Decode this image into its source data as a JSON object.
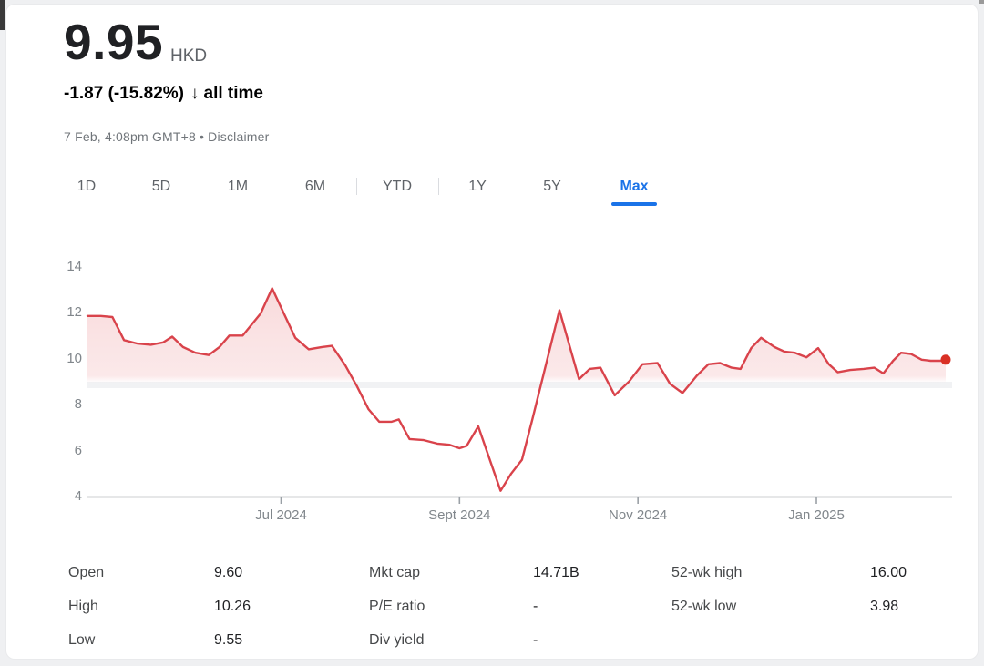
{
  "header": {
    "price": "9.95",
    "currency": "HKD",
    "change": "-1.87 (-15.82%)",
    "arrow_glyph": "↓",
    "change_period": "all time",
    "change_color": "#d93025",
    "timestamp": "7 Feb, 4:08pm GMT+8",
    "dot_separator": "•",
    "disclaimer_label": "Disclaimer"
  },
  "range_tabs": {
    "items": [
      "1D",
      "5D",
      "1M",
      "6M",
      "YTD",
      "1Y",
      "5Y",
      "Max"
    ],
    "active": "Max",
    "active_color": "#1a73e8"
  },
  "chart_data": {
    "type": "area",
    "series_name": "Share price (HKD), Max range",
    "line_color": "#d9434b",
    "endpoint_color": "#d93025",
    "fill_base_color": "#e05258",
    "axis_color": "#9aa0a6",
    "ylim": [
      4,
      14
    ],
    "y_ticks": [
      14,
      12,
      10,
      8,
      6,
      4
    ],
    "x_unit_note": "months since 1 Jan 2024 (decimal)",
    "x_domain_months": [
      3.82,
      13.45
    ],
    "x_ticks": [
      {
        "label": "Jul 2024",
        "month": 6
      },
      {
        "label": "Sept 2024",
        "month": 8
      },
      {
        "label": "Nov 2024",
        "month": 10
      },
      {
        "label": "Jan 2025",
        "month": 12
      }
    ],
    "points": [
      [
        3.83,
        11.85
      ],
      [
        3.98,
        11.85
      ],
      [
        4.11,
        11.8
      ],
      [
        4.24,
        10.8
      ],
      [
        4.39,
        10.65
      ],
      [
        4.54,
        10.6
      ],
      [
        4.68,
        10.7
      ],
      [
        4.78,
        10.95
      ],
      [
        4.9,
        10.5
      ],
      [
        5.04,
        10.25
      ],
      [
        5.19,
        10.15
      ],
      [
        5.31,
        10.5
      ],
      [
        5.42,
        11.0
      ],
      [
        5.57,
        11.0
      ],
      [
        5.77,
        11.95
      ],
      [
        5.9,
        13.05
      ],
      [
        6.05,
        11.8
      ],
      [
        6.16,
        10.9
      ],
      [
        6.31,
        10.4
      ],
      [
        6.46,
        10.5
      ],
      [
        6.57,
        10.55
      ],
      [
        6.72,
        9.7
      ],
      [
        6.85,
        8.8
      ],
      [
        6.98,
        7.8
      ],
      [
        7.1,
        7.25
      ],
      [
        7.24,
        7.25
      ],
      [
        7.32,
        7.35
      ],
      [
        7.44,
        6.5
      ],
      [
        7.6,
        6.45
      ],
      [
        7.75,
        6.3
      ],
      [
        7.89,
        6.25
      ],
      [
        8.0,
        6.1
      ],
      [
        8.08,
        6.2
      ],
      [
        8.21,
        7.05
      ],
      [
        8.46,
        4.25
      ],
      [
        8.58,
        5.0
      ],
      [
        8.7,
        5.6
      ],
      [
        8.82,
        7.4
      ],
      [
        9.12,
        12.1
      ],
      [
        9.34,
        9.1
      ],
      [
        9.46,
        9.55
      ],
      [
        9.58,
        9.6
      ],
      [
        9.74,
        8.4
      ],
      [
        9.9,
        9.0
      ],
      [
        10.05,
        9.75
      ],
      [
        10.22,
        9.8
      ],
      [
        10.36,
        8.9
      ],
      [
        10.5,
        8.5
      ],
      [
        10.66,
        9.25
      ],
      [
        10.79,
        9.75
      ],
      [
        10.92,
        9.8
      ],
      [
        11.05,
        9.6
      ],
      [
        11.15,
        9.55
      ],
      [
        11.27,
        10.45
      ],
      [
        11.38,
        10.9
      ],
      [
        11.53,
        10.5
      ],
      [
        11.64,
        10.3
      ],
      [
        11.76,
        10.25
      ],
      [
        11.89,
        10.05
      ],
      [
        12.02,
        10.45
      ],
      [
        12.14,
        9.75
      ],
      [
        12.24,
        9.4
      ],
      [
        12.38,
        9.5
      ],
      [
        12.53,
        9.55
      ],
      [
        12.65,
        9.6
      ],
      [
        12.75,
        9.35
      ],
      [
        12.86,
        9.9
      ],
      [
        12.95,
        10.25
      ],
      [
        13.06,
        10.2
      ],
      [
        13.18,
        9.95
      ],
      [
        13.28,
        9.9
      ],
      [
        13.4,
        9.9
      ],
      [
        13.45,
        9.95
      ]
    ]
  },
  "stats": [
    {
      "label": "Open",
      "value": "9.60"
    },
    {
      "label": "High",
      "value": "10.26"
    },
    {
      "label": "Low",
      "value": "9.55"
    },
    {
      "label": "Mkt cap",
      "value": "14.71B"
    },
    {
      "label": "P/E ratio",
      "value": "-"
    },
    {
      "label": "Div yield",
      "value": "-"
    },
    {
      "label": "52-wk high",
      "value": "16.00"
    },
    {
      "label": "52-wk low",
      "value": "3.98"
    }
  ]
}
